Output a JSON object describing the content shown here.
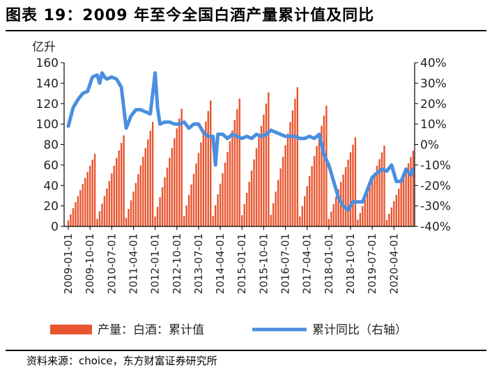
{
  "title": "图表 19：2009 年至今全国白酒产量累计值及同比",
  "source": "资料来源：choice，东方财富证券研究所",
  "colors": {
    "bar": "#e8552f",
    "line": "#4a8fe0",
    "axis": "#000000"
  },
  "chart_data": {
    "type": "bar",
    "title": "图表 19：2009 年至今全国白酒产量累计值及同比",
    "y_left_unit": "亿升",
    "y_left_ticks": [
      "0",
      "20",
      "40",
      "60",
      "80",
      "100",
      "120",
      "140",
      "160"
    ],
    "y_left_range": [
      0,
      160
    ],
    "y_right_ticks": [
      "-40%",
      "-30%",
      "-20%",
      "-10%",
      "0%",
      "10%",
      "20%",
      "30%",
      "40%"
    ],
    "y_right_range": [
      -40,
      40
    ],
    "x_tick_labels": [
      "2009-01-01",
      "2009-10-01",
      "2010-07-01",
      "2011-04-01",
      "2012-01-01",
      "2012-10-01",
      "2013-07-01",
      "2014-04-01",
      "2015-01-01",
      "2015-10-01",
      "2016-07-01",
      "2017-04-01",
      "2018-01-01",
      "2018-10-01",
      "2019-07-01",
      "2020-04-01"
    ],
    "x_range": [
      "2009-01",
      "2020-12"
    ],
    "grid": false,
    "legend_position": "bottom",
    "annual_peaks": [
      {
        "year": 2009,
        "value": 71
      },
      {
        "year": 2010,
        "value": 89
      },
      {
        "year": 2011,
        "value": 102
      },
      {
        "year": 2012,
        "value": 115
      },
      {
        "year": 2013,
        "value": 123
      },
      {
        "year": 2014,
        "value": 125
      },
      {
        "year": 2015,
        "value": 131
      },
      {
        "year": 2016,
        "value": 136
      },
      {
        "year": 2017,
        "value": 118
      },
      {
        "year": 2018,
        "value": 87
      },
      {
        "year": 2019,
        "value": 79
      },
      {
        "year": 2020,
        "value": 74
      }
    ],
    "series": [
      {
        "name": "产量：白酒：累计值",
        "axis": "left",
        "x": [
          "2009-01",
          "2009-02",
          "2009-03",
          "2009-04",
          "2009-05",
          "2009-06",
          "2009-07",
          "2009-08",
          "2009-09",
          "2009-10",
          "2009-11",
          "2009-12",
          "2010-01",
          "2010-02",
          "2010-03",
          "2010-04",
          "2010-05",
          "2010-06",
          "2010-07",
          "2010-08",
          "2010-09",
          "2010-10",
          "2010-11",
          "2010-12",
          "2011-01",
          "2011-02",
          "2011-03",
          "2011-04",
          "2011-05",
          "2011-06",
          "2011-07",
          "2011-08",
          "2011-09",
          "2011-10",
          "2011-11",
          "2011-12",
          "2012-01",
          "2012-02",
          "2012-03",
          "2012-04",
          "2012-05",
          "2012-06",
          "2012-07",
          "2012-08",
          "2012-09",
          "2012-10",
          "2012-11",
          "2012-12",
          "2013-01",
          "2013-02",
          "2013-03",
          "2013-04",
          "2013-05",
          "2013-06",
          "2013-07",
          "2013-08",
          "2013-09",
          "2013-10",
          "2013-11",
          "2013-12",
          "2014-01",
          "2014-02",
          "2014-03",
          "2014-04",
          "2014-05",
          "2014-06",
          "2014-07",
          "2014-08",
          "2014-09",
          "2014-10",
          "2014-11",
          "2014-12",
          "2015-01",
          "2015-02",
          "2015-03",
          "2015-04",
          "2015-05",
          "2015-06",
          "2015-07",
          "2015-08",
          "2015-09",
          "2015-10",
          "2015-11",
          "2015-12",
          "2016-01",
          "2016-02",
          "2016-03",
          "2016-04",
          "2016-05",
          "2016-06",
          "2016-07",
          "2016-08",
          "2016-09",
          "2016-10",
          "2016-11",
          "2016-12",
          "2017-01",
          "2017-02",
          "2017-03",
          "2017-04",
          "2017-05",
          "2017-06",
          "2017-07",
          "2017-08",
          "2017-09",
          "2017-10",
          "2017-11",
          "2017-12",
          "2018-01",
          "2018-02",
          "2018-03",
          "2018-04",
          "2018-05",
          "2018-06",
          "2018-07",
          "2018-08",
          "2018-09",
          "2018-10",
          "2018-11",
          "2018-12",
          "2019-01",
          "2019-02",
          "2019-03",
          "2019-04",
          "2019-05",
          "2019-06",
          "2019-07",
          "2019-08",
          "2019-09",
          "2019-10",
          "2019-11",
          "2019-12",
          "2020-01",
          "2020-02",
          "2020-03",
          "2020-04",
          "2020-05",
          "2020-06",
          "2020-07",
          "2020-08",
          "2020-09",
          "2020-10",
          "2020-11",
          "2020-12"
        ],
        "values": [
          5.9,
          11.8,
          17.8,
          23.7,
          29.6,
          35.5,
          41.4,
          47.3,
          53.2,
          59.2,
          65.1,
          71.0,
          7.4,
          14.8,
          22.2,
          29.7,
          37.1,
          44.5,
          51.9,
          59.3,
          66.8,
          74.2,
          81.6,
          89.0,
          8.5,
          17.0,
          25.5,
          34.0,
          42.5,
          51.0,
          59.5,
          68.0,
          76.5,
          85.0,
          93.5,
          102.0,
          9.6,
          19.2,
          28.8,
          38.3,
          47.9,
          57.5,
          67.1,
          76.7,
          86.3,
          95.8,
          105.4,
          115.0,
          10.3,
          20.5,
          30.8,
          41.0,
          51.3,
          61.5,
          71.8,
          82.0,
          92.3,
          102.5,
          112.8,
          123.0,
          10.4,
          20.8,
          31.3,
          41.7,
          52.1,
          62.5,
          72.9,
          83.3,
          93.8,
          104.2,
          114.6,
          125.0,
          10.9,
          21.8,
          32.8,
          43.7,
          54.6,
          65.5,
          76.4,
          87.3,
          98.3,
          109.2,
          120.1,
          131.0,
          11.3,
          22.7,
          34.0,
          45.3,
          56.7,
          68.0,
          79.3,
          90.7,
          102.0,
          113.3,
          124.7,
          136.0,
          9.8,
          19.7,
          29.5,
          39.3,
          49.2,
          59.0,
          68.8,
          78.7,
          88.5,
          98.3,
          108.2,
          118.0,
          7.3,
          14.5,
          21.8,
          29.0,
          36.3,
          43.5,
          50.8,
          58.0,
          65.3,
          72.5,
          79.8,
          87.0,
          6.6,
          13.2,
          19.8,
          26.3,
          32.9,
          39.5,
          46.1,
          52.7,
          59.3,
          65.8,
          72.4,
          79.0,
          6.2,
          12.3,
          18.5,
          24.7,
          30.8,
          37.0,
          43.2,
          49.3,
          55.5,
          61.7,
          67.8,
          74.0
        ]
      },
      {
        "name": "累计同比（右轴）",
        "axis": "right",
        "x": [
          "2009-01",
          "2009-03",
          "2009-05",
          "2009-07",
          "2009-09",
          "2009-11",
          "2010-01",
          "2010-02",
          "2010-03",
          "2010-04",
          "2010-05",
          "2010-07",
          "2010-09",
          "2010-11",
          "2011-01",
          "2011-03",
          "2011-05",
          "2011-07",
          "2011-09",
          "2011-11",
          "2012-01",
          "2012-02",
          "2012-03",
          "2012-05",
          "2012-07",
          "2012-09",
          "2012-11",
          "2013-01",
          "2013-03",
          "2013-05",
          "2013-07",
          "2013-09",
          "2013-11",
          "2014-01",
          "2014-02",
          "2014-03",
          "2014-05",
          "2014-07",
          "2014-09",
          "2014-11",
          "2015-01",
          "2015-03",
          "2015-05",
          "2015-07",
          "2015-09",
          "2015-11",
          "2016-01",
          "2016-03",
          "2016-05",
          "2016-07",
          "2016-09",
          "2016-11",
          "2017-01",
          "2017-03",
          "2017-05",
          "2017-07",
          "2017-09",
          "2017-11",
          "2018-01",
          "2018-03",
          "2018-05",
          "2018-07",
          "2018-09",
          "2018-11",
          "2019-01",
          "2019-03",
          "2019-05",
          "2019-07",
          "2019-09",
          "2019-11",
          "2020-01",
          "2020-03",
          "2020-05",
          "2020-07",
          "2020-09",
          "2020-11",
          "2020-12"
        ],
        "values": [
          9,
          18,
          22,
          25,
          26,
          33,
          34,
          30,
          35,
          33,
          32,
          33,
          32,
          28,
          8,
          14,
          17,
          17,
          16,
          15,
          35,
          18,
          10,
          11,
          11,
          10,
          10,
          11,
          8,
          10,
          10,
          6,
          4,
          4,
          -10,
          5,
          5,
          3,
          5,
          4,
          3,
          4,
          3,
          5,
          4,
          5,
          7,
          6,
          5,
          4,
          4,
          4,
          3,
          3,
          4,
          3,
          5,
          -5,
          -10,
          -18,
          -26,
          -30,
          -32,
          -28,
          -28,
          -28,
          -22,
          -16,
          -14,
          -12,
          -13,
          -10,
          -18,
          -18,
          -12,
          -15,
          -12
        ]
      }
    ]
  }
}
